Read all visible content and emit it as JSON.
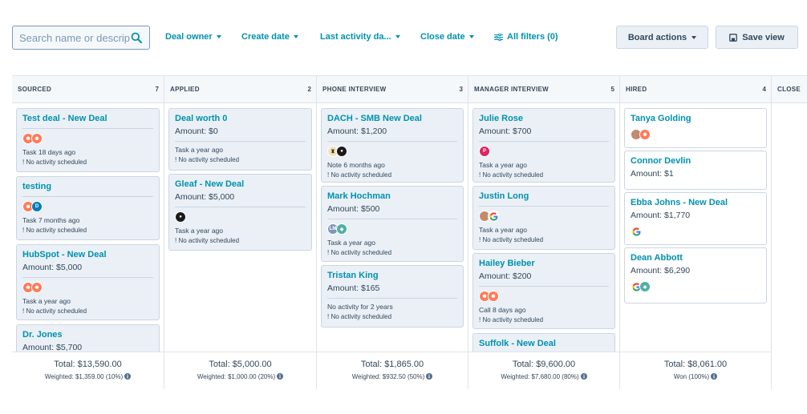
{
  "search": {
    "placeholder": "Search name or description",
    "value": ""
  },
  "filters": [
    {
      "label": "Deal owner"
    },
    {
      "label": "Create date"
    },
    {
      "label": "Last activity da..."
    },
    {
      "label": "Close date"
    },
    {
      "label": "All filters (0)"
    }
  ],
  "actions": {
    "board_actions": "Board actions",
    "save_view": "Save view"
  },
  "colors": {
    "accent": "#0091ae",
    "card_bg": "#eaf0f6",
    "border": "#cbd6e2",
    "hubspot_orange": "#ff7a59"
  },
  "columns": [
    {
      "title": "SOURCED",
      "count": "7",
      "total": "Total: $13,590.00",
      "weighted": "Weighted: $1,359.00 (10%)",
      "cards": [
        {
          "title": "Test deal - New Deal",
          "note": "Task 18 days ago",
          "activity": "! No activity scheduled",
          "avatars": [
            "hubspot",
            "hubspot"
          ]
        },
        {
          "title": "testing",
          "note": "Task 7 months ago",
          "activity": "! No activity scheduled",
          "avatars": [
            "hubspot",
            "dell"
          ]
        },
        {
          "title": "HubSpot - New Deal",
          "amount": "Amount: $5,000",
          "note": "Task a year ago",
          "activity": "! No activity scheduled",
          "avatars": [
            "hubspot",
            "hubspot"
          ]
        },
        {
          "title": "Dr. Jones",
          "amount": "Amount: $5,700"
        }
      ]
    },
    {
      "title": "APPLIED",
      "count": "2",
      "total": "Total: $5,000.00",
      "weighted": "Weighted: $1,000.00 (20%)",
      "cards": [
        {
          "title": "Deal worth 0",
          "amount": "Amount: $0",
          "note": "Task a year ago",
          "activity": "! No activity scheduled"
        },
        {
          "title": "Gleaf - New Deal",
          "amount": "Amount: $5,000",
          "note": "Task a year ago",
          "activity": "! No activity scheduled",
          "avatars": [
            "leaf"
          ]
        }
      ]
    },
    {
      "title": "PHONE INTERVIEW",
      "count": "3",
      "total": "Total: $1,865.00",
      "weighted": "Weighted: $932.50 (50%)",
      "cards": [
        {
          "title": "DACH - SMB New Deal",
          "amount": "Amount: $1,200",
          "note": "Note 6 months ago",
          "activity": "! No activity scheduled",
          "avatars": [
            "cream",
            "dark"
          ]
        },
        {
          "title": "Mark Hochman",
          "amount": "Amount: $500",
          "note": "Task a year ago",
          "activity": "! No activity scheduled",
          "avatars": [
            "lm",
            "teal"
          ]
        },
        {
          "title": "Tristan King",
          "amount": "Amount: $165",
          "note": "No activity for 2 years",
          "activity": "! No activity scheduled"
        }
      ]
    },
    {
      "title": "MANAGER INTERVIEW",
      "count": "5",
      "total": "Total: $9,600.00",
      "weighted": "Weighted: $7,680.00 (80%)",
      "cards": [
        {
          "title": "Julie Rose",
          "amount": "Amount: $700",
          "note": "Task a year ago",
          "activity": "! No activity scheduled",
          "avatars": [
            "p"
          ]
        },
        {
          "title": "Justin Long",
          "note": "Task a year ago",
          "activity": "! No activity scheduled",
          "avatars": [
            "face",
            "google"
          ]
        },
        {
          "title": "Hailey Bieber",
          "amount": "Amount: $200",
          "note": "Call 8 days ago",
          "activity": "! No activity scheduled",
          "avatars": [
            "hubspot",
            "hubspot"
          ]
        },
        {
          "title": "Suffolk - New Deal"
        }
      ]
    },
    {
      "title": "HIRED",
      "count": "4",
      "total": "Total: $8,061.00",
      "weighted": "Won (100%)",
      "cards": [
        {
          "title": "Tanya Golding",
          "avatars": [
            "face",
            "hubspot"
          ]
        },
        {
          "title": "Connor Devlin",
          "amount": "Amount: $1"
        },
        {
          "title": "Ebba Johns - New Deal",
          "amount": "Amount: $1,770",
          "avatars": [
            "google"
          ]
        },
        {
          "title": "Dean Abbott",
          "amount": "Amount: $6,290",
          "avatars": [
            "google",
            "teal"
          ]
        }
      ]
    },
    {
      "title": "CLOSE"
    }
  ]
}
